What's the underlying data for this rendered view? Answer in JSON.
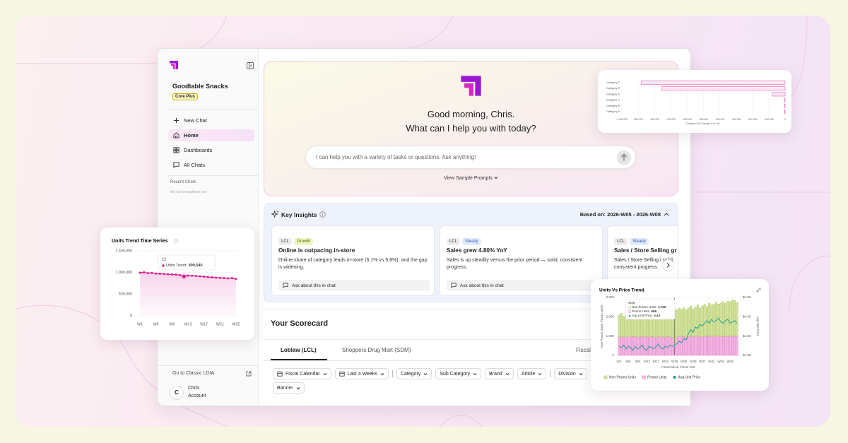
{
  "sidebar": {
    "brand": "Goodtable Snacks",
    "plan": "Core Plus",
    "nav": [
      "New Chat",
      "Home",
      "Dashboards",
      "All Chats"
    ],
    "recent_title": "Recent Chats",
    "recent_empty": "No conversations yet",
    "classic_link": "Go to Classic LDIA",
    "user": {
      "initial": "C",
      "name": "Chris",
      "role": "Account"
    }
  },
  "hero": {
    "greeting": "Good morning, Chris.",
    "question": "What can I help you with today?",
    "input_placeholder": "I can help you with a variety of tasks or questions. Ask anything!",
    "sample_prompts": "View Sample Prompts"
  },
  "insights": {
    "title": "Key Insights",
    "range": "Based on: 2026-W05 - 2026-W08",
    "cards": [
      {
        "tags": [
          "LCL",
          "Growth"
        ],
        "title": "Online is outpacing in-store",
        "body": "Online share of category leads in-store (6.1% vs 5.8%), and the gap is widening.",
        "action": "Ask about this in chat"
      },
      {
        "tags": [
          "LCL",
          "Steady"
        ],
        "title": "Sales grew 4.80% YoY",
        "body": "Sales is up steadily versus the prior period — solid, consistent progress.",
        "action": "Ask about this in chat"
      },
      {
        "tags": [
          "LCL",
          "Steady"
        ],
        "title": "Sales / Store Selling gr",
        "body": "Sales / Store Selling i solid, consistent progress."
      }
    ]
  },
  "scorecard": {
    "title": "Your Scorecard",
    "tabs": [
      "Loblaw (LCL)",
      "Shoppers Drug Mart (SDM)",
      "Fiscal"
    ],
    "filters": [
      "Fiscal Calendar",
      "Last 4 Weeks",
      "Category",
      "Sub Category",
      "Brand",
      "Article",
      "Division",
      "Banner"
    ]
  },
  "chart_data": [
    {
      "type": "line",
      "title": "Units Trend Time Series",
      "color": "#d81b8c",
      "categories": [
        "W1",
        null,
        null,
        null,
        "W5",
        null,
        null,
        null,
        "W9",
        null,
        null,
        null,
        "W13",
        null,
        null,
        null,
        "W17",
        null,
        null,
        null,
        "W21",
        null,
        null,
        null,
        "W25"
      ],
      "values": [
        995000,
        1005000,
        985000,
        990000,
        975000,
        970000,
        965000,
        960000,
        955000,
        950000,
        940000,
        909540,
        930000,
        925000,
        920000,
        910000,
        905000,
        895000,
        890000,
        880000,
        875000,
        870000,
        865000,
        870000,
        850000
      ],
      "ylim": [
        0,
        1500000
      ],
      "yticks": [
        0,
        {
          "value": 500000,
          "label": "500,000"
        },
        {
          "value": 1000000,
          "label": "1,000,000"
        },
        {
          "value": 1500000,
          "label": "1,500,000"
        }
      ],
      "grid": true,
      "tooltip": {
        "title": "12",
        "label": "Units Trend:",
        "value": "909,540"
      }
    },
    {
      "type": "bar",
      "orientation": "horizontal",
      "color": "#e05fb0",
      "categories": [
        "Category F",
        "Category E",
        "Category D",
        "Category C",
        "Category B",
        "Category A"
      ],
      "values": [
        -880000,
        -755000,
        -78000,
        -5000,
        -4000,
        -3000
      ],
      "xlim": [
        -1000000,
        0
      ],
      "xticks": [
        {
          "value": -1000000,
          "label": "-1,000,000"
        },
        {
          "value": -900000,
          "label": "-900,000"
        },
        {
          "value": -800000,
          "label": "-800,000"
        },
        {
          "value": -700000,
          "label": "-700,000"
        },
        {
          "value": -600000,
          "label": "-600,000"
        },
        {
          "value": -500000,
          "label": "-500,000"
        },
        {
          "value": -400000,
          "label": "-400,000"
        },
        {
          "value": -300000,
          "label": "-300,000"
        },
        {
          "value": -200000,
          "label": "-200,000"
        },
        {
          "value": -100000,
          "label": "-100,000"
        },
        0
      ],
      "xlabel": "Category Unit Change & Vs YoY"
    },
    {
      "type": "combo",
      "title": "Units Vs Price Trend",
      "categories": [
        "W1",
        null,
        null,
        null,
        "W5",
        null,
        null,
        null,
        "W9",
        null,
        null,
        null,
        "W13",
        null,
        null,
        null,
        "W17",
        null,
        null,
        null,
        "W21",
        null,
        null,
        null,
        "W25",
        null,
        null,
        null,
        "W29",
        null,
        null,
        null,
        "W33",
        null,
        null,
        null,
        "W37",
        null,
        null,
        null,
        "W41",
        null,
        null,
        null,
        "W45",
        null,
        null,
        null,
        "W49",
        null,
        null,
        null
      ],
      "series": [
        {
          "name": "Non Promo Units",
          "color": "#9bbd2e",
          "type": "bar",
          "values": [
            1150,
            1200,
            1100,
            1250,
            1180,
            1220,
            1300,
            1150,
            1280,
            1200,
            1260,
            1320,
            1180,
            1250,
            1300,
            1240,
            1200,
            1350,
            1280,
            1260,
            1320,
            1300,
            1380,
            1340,
            1760,
            1400,
            1450,
            1380,
            1500,
            1420,
            1480,
            1550,
            1460,
            1520,
            1600,
            1500,
            1580,
            1650,
            1560,
            1700,
            1620,
            1680,
            1750,
            1640,
            1720,
            1800,
            1700,
            1850,
            1780,
            1900,
            1820,
            1750
          ]
        },
        {
          "name": "Promo Units",
          "color": "#e05cbc",
          "type": "bar",
          "values": [
            950,
            980,
            920,
            960,
            1000,
            940,
            970,
            990,
            930,
            960,
            1010,
            950,
            980,
            940,
            970,
            990,
            920,
            960,
            1000,
            950,
            930,
            980,
            960,
            940,
            668,
            950,
            990,
            1010,
            970,
            940,
            980,
            1000,
            960,
            990,
            1020,
            950,
            980,
            1000,
            970,
            1010,
            990,
            960,
            1000,
            1020,
            980,
            990,
            1010,
            970,
            1000,
            980,
            1020,
            990
          ]
        },
        {
          "name": "Avg Unit Price",
          "color": "#17998c",
          "type": "line",
          "axis": "y2",
          "values": [
            4.42,
            4.41,
            4.43,
            4.4,
            4.42,
            4.41,
            4.39,
            4.42,
            4.4,
            4.41,
            4.43,
            4.4,
            4.39,
            4.42,
            4.41,
            4.4,
            4.42,
            4.44,
            4.41,
            4.4,
            4.42,
            4.41,
            4.43,
            4.42,
            4.43,
            4.44,
            4.46,
            4.45,
            4.48,
            4.47,
            4.52,
            4.55,
            4.53,
            4.57,
            4.56,
            4.59,
            4.58,
            4.6,
            4.62,
            4.6,
            4.63,
            4.61,
            4.62,
            4.64,
            4.61,
            4.6,
            4.62,
            4.63,
            4.6,
            4.61,
            4.62,
            4.6
          ]
        }
      ],
      "ylim": [
        0,
        3000
      ],
      "yticks": [
        0,
        {
          "value": 1000,
          "label": "1,000"
        },
        {
          "value": 2000,
          "label": "2,000"
        },
        {
          "value": 3000,
          "label": "3,000"
        }
      ],
      "y2lim": [
        4.35,
        4.8
      ],
      "y2ticks": [
        {
          "value": 4.35,
          "label": "$4.35"
        },
        {
          "value": 4.5,
          "label": "$4.50"
        },
        {
          "value": 4.65,
          "label": "$4.65"
        },
        {
          "value": 4.8,
          "label": "$4.80"
        }
      ],
      "xlabel": "Fiscal Week, Fiscal Year",
      "ylabel": "Non Promo Units, Promo Units",
      "y2label": "Avg Unit Price",
      "tooltip": {
        "title": "W25",
        "rows": [
          {
            "label": "Non Promo Units:",
            "value": "1,760"
          },
          {
            "label": "Promo Units:",
            "value": "668"
          },
          {
            "label": "Avg Unit Price:",
            "value": "4.43"
          }
        ]
      }
    }
  ]
}
